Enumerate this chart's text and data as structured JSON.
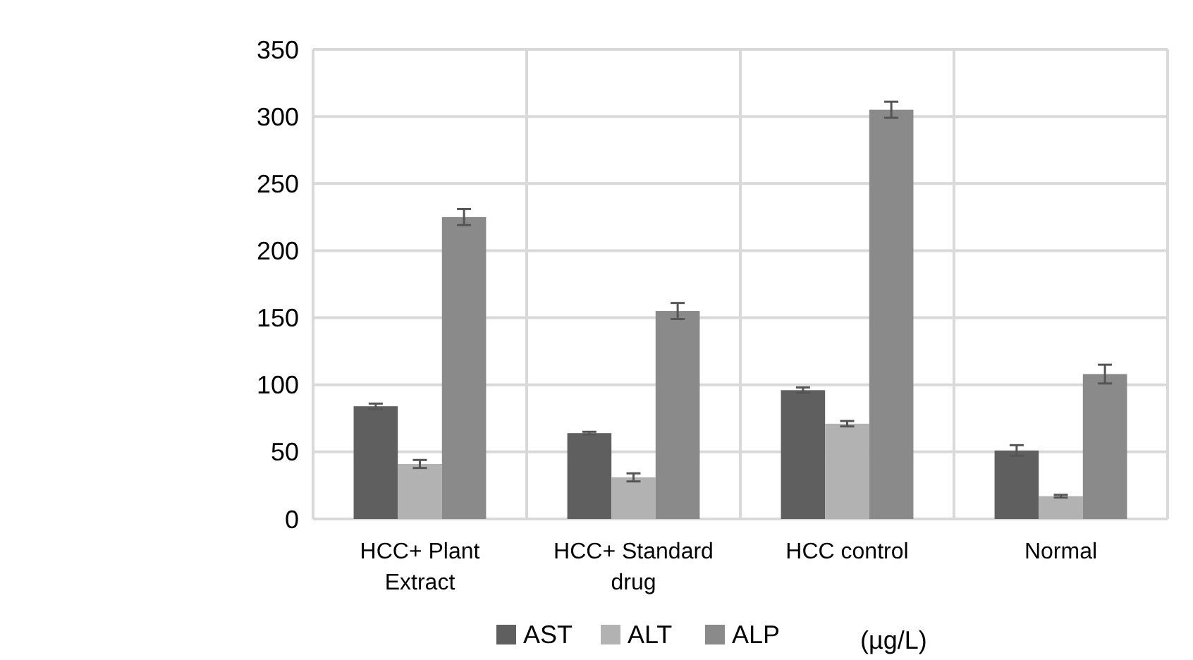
{
  "chart_data": {
    "type": "bar",
    "categories": [
      "HCC+ Plant Extract",
      "HCC+ Standard drug",
      "HCC control",
      "Normal"
    ],
    "series": [
      {
        "name": "AST",
        "color": "#5f5f5f",
        "values": [
          84,
          64,
          96,
          51
        ],
        "errors": [
          2,
          1,
          2,
          4
        ]
      },
      {
        "name": "ALT",
        "color": "#b2b2b2",
        "values": [
          41,
          31,
          71,
          17
        ],
        "errors": [
          3,
          3,
          2,
          1
        ]
      },
      {
        "name": "ALP",
        "color": "#8a8a8a",
        "values": [
          225,
          155,
          305,
          108
        ],
        "errors": [
          6,
          6,
          6,
          7
        ]
      }
    ],
    "ylim": [
      0,
      350
    ],
    "yticks": [
      0,
      50,
      100,
      150,
      200,
      250,
      300,
      350
    ],
    "grid": true,
    "legend": "bottom",
    "annotations": [
      "(µg/L)"
    ]
  }
}
